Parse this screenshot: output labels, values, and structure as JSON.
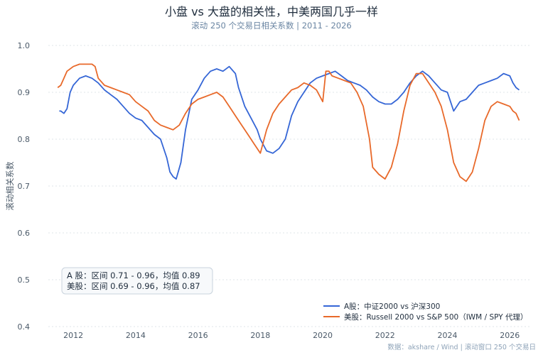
{
  "chart_data": {
    "type": "line",
    "title": "小盘 vs 大盘的相关性，中美两国几乎一样",
    "subtitle": "滚动 250 个交易日相关系数  |  2011  -  2026",
    "ylabel": "滚动相关系数",
    "xlim": [
      2011.2,
      2026.7
    ],
    "ylim": [
      0.4,
      1.0
    ],
    "yticks": [
      "0.4",
      "0.5",
      "0.6",
      "0.7",
      "0.8",
      "0.9",
      "1.0"
    ],
    "xticks": [
      "2012",
      "2014",
      "2016",
      "2018",
      "2020",
      "2022",
      "2024",
      "2026"
    ],
    "grid": true,
    "legend_position": "bottom-right",
    "series": [
      {
        "name": "A股：中证2000 vs 沪深300",
        "color": "#3566d6",
        "x": [
          2011.55,
          2011.6,
          2011.7,
          2011.8,
          2011.9,
          2012.0,
          2012.2,
          2012.4,
          2012.6,
          2012.8,
          2013.0,
          2013.2,
          2013.4,
          2013.6,
          2013.8,
          2014.0,
          2014.2,
          2014.4,
          2014.6,
          2014.8,
          2015.0,
          2015.1,
          2015.2,
          2015.3,
          2015.45,
          2015.6,
          2015.8,
          2016.0,
          2016.2,
          2016.4,
          2016.6,
          2016.8,
          2017.0,
          2017.2,
          2017.3,
          2017.5,
          2017.7,
          2017.9,
          2018.0,
          2018.2,
          2018.4,
          2018.6,
          2018.8,
          2019.0,
          2019.2,
          2019.4,
          2019.6,
          2019.8,
          2020.0,
          2020.2,
          2020.4,
          2020.6,
          2020.8,
          2021.0,
          2021.2,
          2021.4,
          2021.6,
          2021.8,
          2022.0,
          2022.2,
          2022.4,
          2022.6,
          2022.8,
          2023.0,
          2023.2,
          2023.4,
          2023.6,
          2023.8,
          2024.0,
          2024.1,
          2024.2,
          2024.4,
          2024.6,
          2024.8,
          2025.0,
          2025.2,
          2025.4,
          2025.6,
          2025.8,
          2026.0,
          2026.1,
          2026.2,
          2026.3
        ],
        "y": [
          0.86,
          0.86,
          0.855,
          0.865,
          0.9,
          0.915,
          0.93,
          0.935,
          0.93,
          0.92,
          0.905,
          0.895,
          0.885,
          0.87,
          0.855,
          0.845,
          0.84,
          0.825,
          0.81,
          0.8,
          0.76,
          0.73,
          0.72,
          0.715,
          0.75,
          0.82,
          0.885,
          0.905,
          0.93,
          0.945,
          0.95,
          0.945,
          0.955,
          0.94,
          0.91,
          0.87,
          0.845,
          0.82,
          0.8,
          0.775,
          0.77,
          0.78,
          0.8,
          0.85,
          0.88,
          0.9,
          0.92,
          0.93,
          0.935,
          0.94,
          0.945,
          0.935,
          0.925,
          0.92,
          0.915,
          0.905,
          0.89,
          0.88,
          0.875,
          0.875,
          0.885,
          0.9,
          0.92,
          0.935,
          0.945,
          0.935,
          0.92,
          0.905,
          0.9,
          0.88,
          0.86,
          0.88,
          0.885,
          0.9,
          0.915,
          0.92,
          0.925,
          0.93,
          0.94,
          0.935,
          0.92,
          0.91,
          0.905
        ]
      },
      {
        "name": "美股：Russell 2000 vs S&P 500（IWM / SPY 代理）",
        "color": "#e8692a",
        "x": [
          2011.5,
          2011.6,
          2011.7,
          2011.8,
          2012.0,
          2012.2,
          2012.4,
          2012.6,
          2012.7,
          2012.8,
          2013.0,
          2013.2,
          2013.4,
          2013.6,
          2013.8,
          2014.0,
          2014.2,
          2014.4,
          2014.6,
          2014.8,
          2015.0,
          2015.2,
          2015.4,
          2015.6,
          2015.8,
          2016.0,
          2016.2,
          2016.4,
          2016.6,
          2016.8,
          2017.0,
          2017.2,
          2017.4,
          2017.6,
          2017.8,
          2018.0,
          2018.2,
          2018.4,
          2018.6,
          2018.8,
          2019.0,
          2019.2,
          2019.4,
          2019.6,
          2019.8,
          2020.0,
          2020.1,
          2020.2,
          2020.3,
          2020.5,
          2020.7,
          2020.9,
          2021.1,
          2021.3,
          2021.5,
          2021.6,
          2021.8,
          2022.0,
          2022.2,
          2022.4,
          2022.6,
          2022.8,
          2023.0,
          2023.2,
          2023.4,
          2023.6,
          2023.8,
          2024.0,
          2024.2,
          2024.4,
          2024.6,
          2024.8,
          2025.0,
          2025.2,
          2025.4,
          2025.6,
          2025.8,
          2026.0,
          2026.1,
          2026.2,
          2026.3
        ],
        "y": [
          0.91,
          0.915,
          0.93,
          0.945,
          0.955,
          0.96,
          0.96,
          0.96,
          0.955,
          0.93,
          0.915,
          0.91,
          0.905,
          0.9,
          0.895,
          0.88,
          0.87,
          0.86,
          0.84,
          0.83,
          0.825,
          0.82,
          0.83,
          0.855,
          0.875,
          0.885,
          0.89,
          0.895,
          0.9,
          0.89,
          0.87,
          0.85,
          0.83,
          0.81,
          0.79,
          0.77,
          0.82,
          0.855,
          0.875,
          0.89,
          0.905,
          0.91,
          0.92,
          0.915,
          0.905,
          0.88,
          0.945,
          0.945,
          0.935,
          0.93,
          0.925,
          0.92,
          0.9,
          0.87,
          0.8,
          0.74,
          0.725,
          0.715,
          0.74,
          0.79,
          0.86,
          0.915,
          0.94,
          0.94,
          0.92,
          0.9,
          0.87,
          0.82,
          0.75,
          0.72,
          0.71,
          0.73,
          0.78,
          0.84,
          0.87,
          0.88,
          0.875,
          0.87,
          0.86,
          0.855,
          0.84
        ]
      }
    ],
    "annotations": [
      "A 股：区间 0.71  -  0.96，均值 0.89",
      "美股：区间 0.69  -  0.96，均值 0.87"
    ],
    "footer": "数据：akshare / Wind  |  滚动窗口 250 个交易日"
  }
}
